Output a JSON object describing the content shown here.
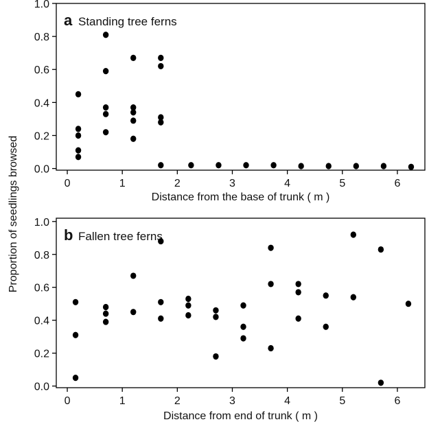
{
  "figure": {
    "shared_ylabel": "Proportion of seedlings browsed"
  },
  "chart_data": [
    {
      "type": "scatter",
      "panel_letter": "a",
      "title": "Standing tree ferns",
      "xlabel": "Distance from the base of trunk ( m )",
      "ylabel": "Proportion of seedlings browsed",
      "xlim": [
        -0.2,
        6.5
      ],
      "ylim": [
        -0.01,
        1.0
      ],
      "xticks": [
        0,
        1,
        2,
        3,
        4,
        5,
        6
      ],
      "yticks": [
        0.0,
        0.2,
        0.4,
        0.6,
        0.8,
        1.0
      ],
      "ytick_labels": [
        "0.0",
        "0.2",
        "0.4",
        "0.6",
        "0.8",
        "1.0"
      ],
      "grid": false,
      "points": [
        {
          "x": 0.2,
          "y": 0.45
        },
        {
          "x": 0.2,
          "y": 0.24
        },
        {
          "x": 0.2,
          "y": 0.2
        },
        {
          "x": 0.2,
          "y": 0.11
        },
        {
          "x": 0.2,
          "y": 0.07
        },
        {
          "x": 0.7,
          "y": 0.81
        },
        {
          "x": 0.7,
          "y": 0.59
        },
        {
          "x": 0.7,
          "y": 0.37
        },
        {
          "x": 0.7,
          "y": 0.33
        },
        {
          "x": 0.7,
          "y": 0.22
        },
        {
          "x": 1.2,
          "y": 0.67
        },
        {
          "x": 1.2,
          "y": 0.37
        },
        {
          "x": 1.2,
          "y": 0.34
        },
        {
          "x": 1.2,
          "y": 0.29
        },
        {
          "x": 1.2,
          "y": 0.18
        },
        {
          "x": 1.7,
          "y": 0.67
        },
        {
          "x": 1.7,
          "y": 0.62
        },
        {
          "x": 1.7,
          "y": 0.31
        },
        {
          "x": 1.7,
          "y": 0.28
        },
        {
          "x": 1.7,
          "y": 0.02
        },
        {
          "x": 2.25,
          "y": 0.02
        },
        {
          "x": 2.75,
          "y": 0.02
        },
        {
          "x": 3.25,
          "y": 0.02
        },
        {
          "x": 3.75,
          "y": 0.02
        },
        {
          "x": 4.25,
          "y": 0.015
        },
        {
          "x": 4.75,
          "y": 0.015
        },
        {
          "x": 5.25,
          "y": 0.015
        },
        {
          "x": 5.75,
          "y": 0.015
        },
        {
          "x": 6.25,
          "y": 0.01
        }
      ]
    },
    {
      "type": "scatter",
      "panel_letter": "b",
      "title": "Fallen tree ferns",
      "xlabel": "Distance from end of trunk ( m )",
      "ylabel": "Proportion of seedlings browsed",
      "xlim": [
        -0.2,
        6.5
      ],
      "ylim": [
        -0.01,
        1.02
      ],
      "xticks": [
        0,
        1,
        2,
        3,
        4,
        5,
        6
      ],
      "yticks": [
        0.0,
        0.2,
        0.4,
        0.6,
        0.8,
        1.0
      ],
      "ytick_labels": [
        "0.0",
        "0.2",
        "0.4",
        "0.6",
        "0.8",
        "1.0"
      ],
      "grid": false,
      "points": [
        {
          "x": 0.15,
          "y": 0.51
        },
        {
          "x": 0.15,
          "y": 0.31
        },
        {
          "x": 0.15,
          "y": 0.05
        },
        {
          "x": 0.7,
          "y": 0.48
        },
        {
          "x": 0.7,
          "y": 0.44
        },
        {
          "x": 0.7,
          "y": 0.39
        },
        {
          "x": 1.2,
          "y": 0.67
        },
        {
          "x": 1.2,
          "y": 0.45
        },
        {
          "x": 1.7,
          "y": 0.88
        },
        {
          "x": 1.7,
          "y": 0.51
        },
        {
          "x": 1.7,
          "y": 0.41
        },
        {
          "x": 2.2,
          "y": 0.53
        },
        {
          "x": 2.2,
          "y": 0.49
        },
        {
          "x": 2.2,
          "y": 0.43
        },
        {
          "x": 2.7,
          "y": 0.46
        },
        {
          "x": 2.7,
          "y": 0.42
        },
        {
          "x": 2.7,
          "y": 0.18
        },
        {
          "x": 3.2,
          "y": 0.49
        },
        {
          "x": 3.2,
          "y": 0.36
        },
        {
          "x": 3.2,
          "y": 0.29
        },
        {
          "x": 3.7,
          "y": 0.84
        },
        {
          "x": 3.7,
          "y": 0.62
        },
        {
          "x": 3.7,
          "y": 0.23
        },
        {
          "x": 4.2,
          "y": 0.62
        },
        {
          "x": 4.2,
          "y": 0.57
        },
        {
          "x": 4.2,
          "y": 0.41
        },
        {
          "x": 4.7,
          "y": 0.55
        },
        {
          "x": 4.7,
          "y": 0.36
        },
        {
          "x": 5.2,
          "y": 0.92
        },
        {
          "x": 5.2,
          "y": 0.54
        },
        {
          "x": 5.7,
          "y": 0.83
        },
        {
          "x": 5.7,
          "y": 0.02
        },
        {
          "x": 6.2,
          "y": 0.5
        }
      ]
    }
  ]
}
